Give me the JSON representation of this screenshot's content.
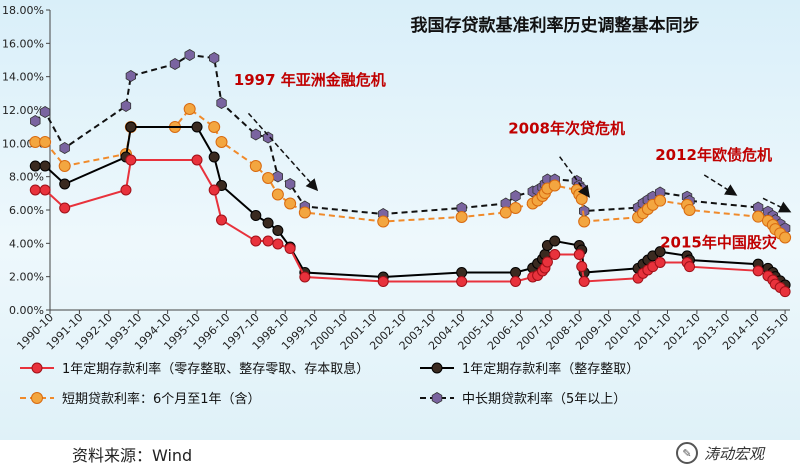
{
  "title": "我国存贷款基准利率历史调整基本同步",
  "source_label": "资料来源：Wind",
  "watermark": {
    "text": "涛动宏观",
    "icon": "wechat-icon"
  },
  "colors": {
    "deposit_zero": "#e8323c",
    "deposit_whole": "#000000",
    "short_loan": "#f08a2a",
    "long_loan": "#111111",
    "annotation": "#c00000"
  },
  "annotations": [
    {
      "text": "1997 年亚洲金融危机",
      "at": [
        "1997-01-01",
        13.5
      ]
    },
    {
      "text": "2008年次贷危机",
      "at": [
        "2006-05-01",
        10.6
      ]
    },
    {
      "text": "2012年欧债危机",
      "at": [
        "2011-05-01",
        9.0
      ]
    },
    {
      "text": "2015年中国股灾",
      "at": [
        "2011-07-01",
        3.75
      ]
    }
  ],
  "chart_data": {
    "type": "line",
    "title": "我国存贷款基准利率历史调整基本同步",
    "xlabel": "",
    "ylabel": "",
    "ylim": [
      0,
      18
    ],
    "yticks": [
      "0.00%",
      "2.00%",
      "4.00%",
      "6.00%",
      "8.00%",
      "10.00%",
      "12.00%",
      "14.00%",
      "16.00%",
      "18.00%"
    ],
    "xlim": [
      "1990-10",
      "2015-12"
    ],
    "xticks": [
      "1990-10",
      "1991-10",
      "1992-10",
      "1993-10",
      "1994-10",
      "1995-10",
      "1996-10",
      "1997-10",
      "1998-10",
      "1999-10",
      "2000-10",
      "2001-10",
      "2002-10",
      "2003-10",
      "2004-10",
      "2005-10",
      "2006-10",
      "2007-10",
      "2008-10",
      "2009-10",
      "2010-10",
      "2011-10",
      "2012-10",
      "2013-10",
      "2014-10",
      "2015-10"
    ],
    "grid": false,
    "legend_position": "bottom",
    "series": [
      {
        "name": "1年定期存款利率（零存整取、整存零取、存本取息）",
        "style": "solid",
        "color": "#e8323c",
        "x": [
          "1990-04",
          "1990-08",
          "1991-04",
          "1993-05",
          "1993-07",
          "1995-10",
          "1996-05",
          "1996-08",
          "1997-10",
          "1998-03",
          "1998-07",
          "1998-12",
          "1999-06",
          "2002-02",
          "2004-10",
          "2006-08",
          "2007-03",
          "2007-05",
          "2007-07",
          "2007-08",
          "2007-09",
          "2007-12",
          "2008-10",
          "2008-11",
          "2008-12",
          "2010-10",
          "2010-12",
          "2011-02",
          "2011-04",
          "2011-07",
          "2012-06",
          "2012-07",
          "2014-11",
          "2015-03",
          "2015-05",
          "2015-06",
          "2015-08",
          "2015-10"
        ],
        "y": [
          7.2,
          7.2,
          6.12,
          7.2,
          9.0,
          9.0,
          7.2,
          5.4,
          4.14,
          4.14,
          3.96,
          3.69,
          1.98,
          1.71,
          1.71,
          1.71,
          1.98,
          2.07,
          2.34,
          2.52,
          2.88,
          3.33,
          3.33,
          2.61,
          1.71,
          1.91,
          2.2,
          2.4,
          2.6,
          2.85,
          2.85,
          2.6,
          2.35,
          2.05,
          1.8,
          1.55,
          1.35,
          1.1
        ]
      },
      {
        "name": "1年定期存款利率（整存整取）",
        "style": "solid",
        "color": "#000000",
        "x": [
          "1990-04",
          "1990-08",
          "1991-04",
          "1993-05",
          "1993-07",
          "1995-10",
          "1996-05",
          "1996-08",
          "1997-10",
          "1998-03",
          "1998-07",
          "1998-12",
          "1999-06",
          "2002-02",
          "2004-10",
          "2006-08",
          "2007-03",
          "2007-05",
          "2007-07",
          "2007-08",
          "2007-09",
          "2007-12",
          "2008-10",
          "2008-11",
          "2008-12",
          "2010-10",
          "2010-12",
          "2011-02",
          "2011-04",
          "2011-07",
          "2012-06",
          "2012-07",
          "2014-11",
          "2015-03",
          "2015-05",
          "2015-06",
          "2015-08",
          "2015-10"
        ],
        "y": [
          8.64,
          8.64,
          7.56,
          9.18,
          10.98,
          10.98,
          9.18,
          7.47,
          5.67,
          5.22,
          4.77,
          3.78,
          2.25,
          1.98,
          2.25,
          2.25,
          2.52,
          2.79,
          3.06,
          3.33,
          3.87,
          4.14,
          3.87,
          3.6,
          2.25,
          2.5,
          2.75,
          3.0,
          3.25,
          3.5,
          3.25,
          3.0,
          2.75,
          2.5,
          2.25,
          2.0,
          1.75,
          1.5
        ]
      },
      {
        "name": "短期贷款利率：6个月至1年（含）",
        "style": "dashed",
        "color": "#f08a2a",
        "x": [
          "1990-04",
          "1990-08",
          "1991-04",
          "1993-05",
          "1993-07",
          "1995-01",
          "1995-07",
          "1996-05",
          "1996-08",
          "1997-10",
          "1998-03",
          "1998-07",
          "1998-12",
          "1999-06",
          "2002-02",
          "2004-10",
          "2006-04",
          "2006-08",
          "2007-03",
          "2007-05",
          "2007-07",
          "2007-08",
          "2007-09",
          "2007-12",
          "2008-09",
          "2008-10",
          "2008-11",
          "2008-12",
          "2010-10",
          "2010-12",
          "2011-02",
          "2011-04",
          "2011-07",
          "2012-06",
          "2012-07",
          "2014-11",
          "2015-03",
          "2015-05",
          "2015-06",
          "2015-08",
          "2015-10"
        ],
        "y": [
          10.08,
          10.08,
          8.64,
          9.36,
          10.98,
          10.98,
          12.06,
          10.98,
          10.08,
          8.64,
          7.92,
          6.93,
          6.39,
          5.85,
          5.31,
          5.58,
          5.85,
          6.12,
          6.39,
          6.57,
          6.84,
          7.02,
          7.29,
          7.47,
          7.2,
          6.93,
          6.66,
          5.31,
          5.56,
          5.81,
          6.06,
          6.31,
          6.56,
          6.31,
          6.0,
          5.6,
          5.35,
          5.1,
          4.85,
          4.6,
          4.35
        ]
      },
      {
        "name": "中长期贷款利率（5年以上）",
        "style": "dashed",
        "color": "#111111",
        "x": [
          "1990-04",
          "1990-08",
          "1991-04",
          "1993-05",
          "1993-07",
          "1995-01",
          "1995-07",
          "1996-05",
          "1996-08",
          "1997-10",
          "1998-03",
          "1998-07",
          "1998-12",
          "1999-06",
          "2002-02",
          "2004-10",
          "2006-04",
          "2006-08",
          "2007-03",
          "2007-05",
          "2007-07",
          "2007-08",
          "2007-09",
          "2007-12",
          "2008-09",
          "2008-10",
          "2008-11",
          "2008-12",
          "2010-10",
          "2010-12",
          "2011-02",
          "2011-04",
          "2011-07",
          "2012-06",
          "2012-07",
          "2014-11",
          "2015-03",
          "2015-05",
          "2015-06",
          "2015-08",
          "2015-10"
        ],
        "y": [
          11.34,
          11.88,
          9.72,
          12.24,
          14.04,
          14.76,
          15.3,
          15.12,
          12.42,
          10.53,
          10.35,
          8.01,
          7.56,
          6.21,
          5.76,
          6.12,
          6.39,
          6.84,
          7.11,
          7.2,
          7.38,
          7.56,
          7.83,
          7.83,
          7.74,
          7.47,
          7.29,
          5.94,
          6.14,
          6.4,
          6.6,
          6.8,
          7.05,
          6.8,
          6.55,
          6.15,
          5.9,
          5.65,
          5.4,
          5.15,
          4.9
        ]
      }
    ]
  }
}
